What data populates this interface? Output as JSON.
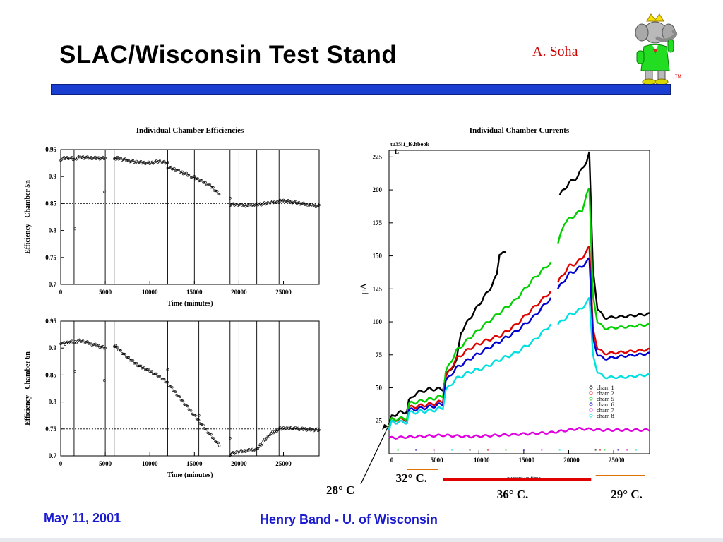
{
  "header": {
    "title": "SLAC/Wisconsin Test Stand",
    "author": "A. Soha",
    "tm": "TM"
  },
  "footer": {
    "date": "May 11, 2001",
    "author": "Henry Band -  U. of Wisconsin"
  },
  "colors": {
    "bar": "#1a3fd0",
    "author": "#d00000",
    "footer": "#1a1ad0"
  },
  "chart_data": [
    {
      "type": "scatter",
      "title": "Individual Chamber Efficiencies",
      "xlabel": "Time (minutes)",
      "ylabel": "Efficiency - Chamber 5n",
      "xlim": [
        0,
        29000
      ],
      "ylim": [
        0.7,
        0.95
      ],
      "xticks": [
        0,
        5000,
        10000,
        15000,
        20000,
        25000
      ],
      "yticks": [
        0.7,
        0.75,
        0.8,
        0.85,
        0.9,
        0.95
      ],
      "vlines": [
        1500,
        5000,
        6000,
        12000,
        15000,
        19000,
        20000,
        22000,
        24500
      ],
      "hline": 0.85,
      "segments": [
        {
          "x": [
            0,
            500,
            1000,
            1500,
            2000,
            3000,
            4000,
            5000
          ],
          "y": [
            0.932,
            0.934,
            0.935,
            0.932,
            0.936,
            0.935,
            0.934,
            0.934
          ]
        },
        {
          "x": [
            6000,
            7000,
            8000,
            9000,
            10000,
            11000,
            12000
          ],
          "y": [
            0.935,
            0.932,
            0.928,
            0.926,
            0.925,
            0.928,
            0.925
          ]
        },
        {
          "x": [
            12000,
            13000,
            14000,
            15000,
            16000,
            17000,
            17800
          ],
          "y": [
            0.918,
            0.912,
            0.905,
            0.898,
            0.89,
            0.88,
            0.867
          ]
        },
        {
          "x": [
            19000,
            20000,
            21000,
            22000,
            23000,
            24000,
            25000,
            26000,
            27000,
            28000,
            29000
          ],
          "y": [
            0.848,
            0.848,
            0.846,
            0.848,
            0.85,
            0.853,
            0.855,
            0.853,
            0.85,
            0.847,
            0.845
          ]
        }
      ],
      "outliers": {
        "x": [
          1600,
          4900,
          6200,
          12000,
          15000,
          19000
        ],
        "y": [
          0.803,
          0.872,
          0.932,
          0.925,
          0.9,
          0.86
        ]
      }
    },
    {
      "type": "scatter",
      "xlabel": "Time (minutes)",
      "ylabel": "Efficiency - Chamber 6n",
      "xlim": [
        0,
        29000
      ],
      "ylim": [
        0.7,
        0.95
      ],
      "xticks": [
        0,
        5000,
        10000,
        15000,
        20000,
        25000
      ],
      "yticks": [
        0.7,
        0.75,
        0.8,
        0.85,
        0.9,
        0.95
      ],
      "vlines": [
        1500,
        5000,
        6000,
        12000,
        15500,
        19000,
        20000,
        22000,
        24500
      ],
      "hline": 0.75,
      "segments": [
        {
          "x": [
            0,
            500,
            1000,
            1500,
            2000,
            3000,
            4000,
            5000
          ],
          "y": [
            0.91,
            0.908,
            0.912,
            0.91,
            0.914,
            0.91,
            0.905,
            0.9
          ]
        },
        {
          "x": [
            6000,
            7000,
            8000,
            9000,
            10000,
            11000,
            12000,
            13000,
            14000,
            15000,
            16000,
            17000,
            17800
          ],
          "y": [
            0.905,
            0.89,
            0.876,
            0.865,
            0.858,
            0.848,
            0.835,
            0.815,
            0.795,
            0.775,
            0.755,
            0.735,
            0.72
          ]
        },
        {
          "x": [
            19000,
            20000,
            21000,
            22000,
            22500,
            23500,
            24500,
            25500,
            27000,
            29000
          ],
          "y": [
            0.703,
            0.708,
            0.71,
            0.712,
            0.722,
            0.74,
            0.75,
            0.752,
            0.75,
            0.748
          ]
        }
      ],
      "outliers": {
        "x": [
          1600,
          4900,
          6200,
          12000,
          15500,
          19000
        ],
        "y": [
          0.857,
          0.84,
          0.905,
          0.86,
          0.775,
          0.733
        ]
      }
    },
    {
      "type": "line",
      "title": "Individual Chamber Currents",
      "subtitle": "tu35i1_i9.hbook",
      "ylabel": "μA",
      "annotation": "current vs time",
      "xlim": [
        0,
        29000
      ],
      "ylim": [
        0,
        230
      ],
      "xticks": [
        0,
        5000,
        10000,
        15000,
        20000,
        25000
      ],
      "yticks": [
        25,
        50,
        75,
        100,
        125,
        150,
        175,
        200,
        225
      ],
      "legend_position": "bottom-right",
      "series": [
        {
          "name": "cham 1",
          "color": "#000000",
          "x": [
            0,
            300,
            1000,
            2000,
            2200,
            3000,
            4500,
            6000,
            6300,
            7500,
            8000,
            9500,
            10500,
            11500,
            12000,
            12300,
            13000
          ],
          "y": [
            22,
            28,
            31,
            32,
            40,
            46,
            49,
            49,
            59,
            70,
            92,
            108,
            118,
            128,
            136,
            152,
            152
          ]
        },
        {
          "name": "cham 2",
          "color": "#e00000",
          "x": [
            0,
            300,
            2000,
            2200,
            5000,
            6000,
            6300,
            7500,
            9000,
            10500,
            12500,
            14000,
            16000,
            18000
          ],
          "y": [
            20,
            26,
            26,
            35,
            38,
            40,
            58,
            72,
            80,
            85,
            90,
            97,
            110,
            123
          ]
        },
        {
          "name": "cham 5",
          "color": "#00d000",
          "x": [
            0,
            300,
            2000,
            2200,
            5000,
            6000,
            6300,
            7500,
            9000,
            10500,
            12500,
            14000,
            16000,
            18000
          ],
          "y": [
            20,
            26,
            27,
            38,
            42,
            44,
            62,
            78,
            88,
            97,
            108,
            116,
            132,
            145
          ]
        },
        {
          "name": "cham 6",
          "color": "#0000d0",
          "x": [
            0,
            300,
            2000,
            2200,
            5000,
            6000,
            6300,
            7500,
            9000,
            10500,
            12500,
            14000,
            16000,
            18000
          ],
          "y": [
            18,
            24,
            24,
            33,
            36,
            38,
            55,
            65,
            72,
            78,
            86,
            92,
            103,
            118
          ]
        },
        {
          "name": "cham 7",
          "color": "#e000e0",
          "x": [
            0,
            3000,
            6000,
            9000,
            12000,
            15000,
            18000,
            21000,
            24000,
            27000,
            29000
          ],
          "y": [
            12,
            13,
            14,
            13,
            14,
            15,
            16,
            19,
            18,
            18,
            18
          ]
        },
        {
          "name": "cham 8",
          "color": "#00e0e0",
          "x": [
            0,
            300,
            2000,
            2200,
            5000,
            6000,
            6300,
            7500,
            9000,
            10500,
            12500,
            14000,
            16000,
            18000
          ],
          "y": [
            18,
            24,
            24,
            31,
            33,
            35,
            48,
            57,
            62,
            65,
            72,
            76,
            85,
            98
          ]
        }
      ],
      "late": [
        {
          "x": [
            19000,
            20000,
            21000,
            21500,
            22000,
            22300
          ],
          "y": [
            196,
            205,
            210,
            216,
            222,
            228
          ]
        },
        {
          "x": [
            18800,
            19500,
            20500,
            21500,
            22000,
            22300
          ],
          "y": [
            159,
            175,
            180,
            185,
            196,
            201
          ]
        },
        {
          "x": [
            18800,
            20000,
            21000,
            22000,
            22300
          ],
          "y": [
            130,
            142,
            145,
            153,
            157
          ]
        },
        {
          "x": [
            18800,
            20000,
            21000,
            22000,
            22300
          ],
          "y": [
            125,
            136,
            140,
            145,
            148
          ]
        },
        {
          "x": [
            18800,
            20000,
            21000,
            22000,
            22300
          ],
          "y": [
            98,
            105,
            108,
            114,
            118
          ]
        }
      ],
      "decay": [
        {
          "color": "#000000",
          "x": [
            22300,
            22700,
            23200,
            24000,
            26000,
            29000
          ],
          "y": [
            228,
            140,
            110,
            103,
            104,
            106
          ]
        },
        {
          "color": "#00d000",
          "x": [
            22300,
            22700,
            23200,
            24000,
            26000,
            29000
          ],
          "y": [
            201,
            120,
            100,
            95,
            96,
            98
          ]
        },
        {
          "color": "#e00000",
          "x": [
            22300,
            22700,
            23200,
            24000,
            26000,
            29000
          ],
          "y": [
            157,
            95,
            80,
            76,
            77,
            79
          ]
        },
        {
          "color": "#0000d0",
          "x": [
            22300,
            22700,
            23200,
            24000,
            26000,
            29000
          ],
          "y": [
            148,
            88,
            75,
            72,
            74,
            76
          ]
        },
        {
          "color": "#00e0e0",
          "x": [
            22300,
            22700,
            23200,
            24000,
            26000,
            29000
          ],
          "y": [
            118,
            75,
            62,
            58,
            58,
            60
          ]
        }
      ],
      "temperatures": [
        {
          "label": "28° C"
        },
        {
          "label": "32° C.",
          "color": "#e07000",
          "x0": 2000,
          "x1": 5500
        },
        {
          "label": "36° C.",
          "color": "#e00000",
          "x0": 6000,
          "x1": 22500
        },
        {
          "label": "29° C.",
          "color": "#e07000",
          "x0": 23000,
          "x1": 28500
        }
      ]
    }
  ]
}
